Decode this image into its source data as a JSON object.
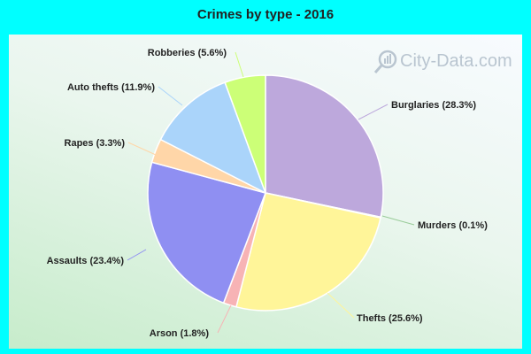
{
  "chart_data": {
    "type": "pie",
    "title": "Crimes by type - 2016",
    "slices": [
      {
        "name": "Burglaries",
        "value": 28.3,
        "label": "Burglaries (28.3%)",
        "color": "#bda8dc"
      },
      {
        "name": "Murders",
        "value": 0.1,
        "label": "Murders (0.1%)",
        "color": "#99cc99"
      },
      {
        "name": "Thefts",
        "value": 25.6,
        "label": "Thefts (25.6%)",
        "color": "#fff599"
      },
      {
        "name": "Arson",
        "value": 1.8,
        "label": "Arson (1.8%)",
        "color": "#f7b3b5"
      },
      {
        "name": "Assaults",
        "value": 23.4,
        "label": "Assaults (23.4%)",
        "color": "#8f8ff2"
      },
      {
        "name": "Rapes",
        "value": 3.3,
        "label": "Rapes (3.3%)",
        "color": "#ffd6a8"
      },
      {
        "name": "Auto thefts",
        "value": 11.9,
        "label": "Auto thefts (11.9%)",
        "color": "#aad4fa"
      },
      {
        "name": "Robberies",
        "value": 5.6,
        "label": "Robberies (5.6%)",
        "color": "#ccff77"
      }
    ]
  },
  "watermark": {
    "text": "City-Data.com",
    "icon": "magnifier-icon"
  }
}
